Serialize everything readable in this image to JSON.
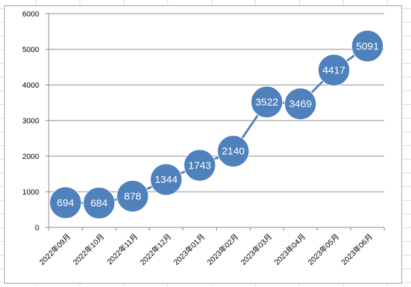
{
  "chart_data": {
    "type": "line",
    "categories": [
      "2022年09月",
      "2022年10月",
      "2022年11月",
      "2022年12月",
      "2023年01月",
      "2023年02月",
      "2023年03月",
      "2023年04月",
      "2023年05月",
      "2023年06月"
    ],
    "values": [
      694,
      684,
      878,
      1344,
      1743,
      2140,
      3522,
      3469,
      4417,
      5091
    ],
    "data_labels": [
      "694",
      "684",
      "878",
      "1344",
      "1743",
      "2140",
      "3522",
      "3469",
      "4417",
      "5091"
    ],
    "y_ticks": [
      "0",
      "1000",
      "2000",
      "3000",
      "4000",
      "5000",
      "6000"
    ],
    "ylim": [
      0,
      6000
    ],
    "title": "",
    "xlabel": "",
    "ylabel": "",
    "grid": true,
    "legend": "none",
    "colors": {
      "series": "#4f81bd",
      "gridline": "#868686",
      "axis": "#868686",
      "label_text": "#ffffff"
    }
  }
}
